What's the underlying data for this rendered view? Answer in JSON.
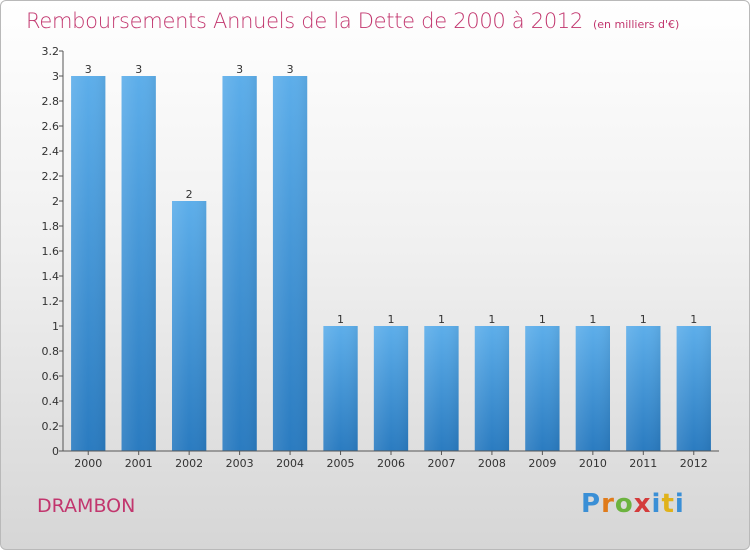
{
  "header": {
    "title": "Remboursements Annuels de la Dette de 2000 à 2012",
    "subtitle": "(en milliers d'€)"
  },
  "footer": {
    "commune": "DRAMBON",
    "logo": "Proxiti"
  },
  "colors": {
    "title": "#c2366e",
    "bar_top": "#5daeea",
    "bar_bottom": "#2a7bc0",
    "axis": "#444444"
  },
  "chart_data": {
    "type": "bar",
    "title": "Remboursements Annuels de la Dette de 2000 à 2012",
    "subtitle": "(en milliers d'€)",
    "xlabel": "",
    "ylabel": "",
    "categories": [
      "2000",
      "2001",
      "2002",
      "2003",
      "2004",
      "2005",
      "2006",
      "2007",
      "2008",
      "2009",
      "2010",
      "2011",
      "2012"
    ],
    "values": [
      3,
      3,
      2,
      3,
      3,
      1,
      1,
      1,
      1,
      1,
      1,
      1,
      1
    ],
    "data_labels": [
      "3",
      "3",
      "2",
      "3",
      "3",
      "1",
      "1",
      "1",
      "1",
      "1",
      "1",
      "1",
      "1"
    ],
    "ylim": [
      0,
      3.2
    ],
    "yticks": [
      0,
      0.2,
      0.4,
      0.6,
      0.8,
      1,
      1.2,
      1.4,
      1.6,
      1.8,
      2,
      2.2,
      2.4,
      2.6,
      2.8,
      3,
      3.2
    ],
    "ytick_labels": [
      "0",
      "0.2",
      "0.4",
      "0.6",
      "0.8",
      "1",
      "1.2",
      "1.4",
      "1.6",
      "1.8",
      "2",
      "2.2",
      "2.4",
      "2.6",
      "2.8",
      "3",
      "3.2"
    ],
    "grid": false,
    "legend": "none"
  }
}
